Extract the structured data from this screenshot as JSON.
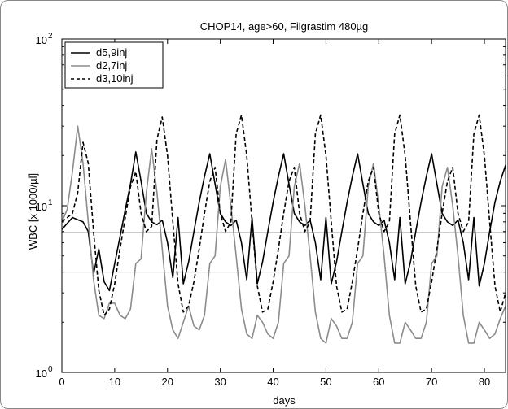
{
  "chart_data": {
    "type": "line",
    "title": "CHOP14, age>60, Filgrastim 480µg",
    "xlabel": "days",
    "ylabel": "WBC [x 1000/µl]",
    "xlim": [
      0,
      84
    ],
    "ylim": [
      1,
      100
    ],
    "y_scale": "log",
    "x_ticks": [
      0,
      10,
      20,
      30,
      40,
      50,
      60,
      70,
      80
    ],
    "x_tick_labels": [
      "0",
      "10",
      "20",
      "30",
      "40",
      "50",
      "60",
      "70",
      "80"
    ],
    "y_ticks": [
      1,
      10,
      100
    ],
    "y_tick_labels": [
      {
        "base": "10",
        "exp": "0"
      },
      {
        "base": "10",
        "exp": "1"
      },
      {
        "base": "10",
        "exp": "2"
      }
    ],
    "legend_position": "top-left",
    "reference_lines": [
      6.9,
      4.0
    ],
    "colors": {
      "black": "#000000",
      "gray": "#8c8c8c",
      "reference": "#9a9a9a"
    },
    "series": [
      {
        "name": "d5,9inj",
        "style": "solid",
        "color": "#000000",
        "x": [
          0,
          2,
          4,
          5,
          6,
          7,
          8,
          9,
          10,
          11,
          12,
          13,
          14,
          15,
          16,
          17,
          18,
          19,
          20,
          21,
          22,
          23,
          24,
          25,
          26,
          27,
          28,
          29,
          30,
          31,
          32,
          33,
          34,
          35,
          36,
          37,
          38,
          39,
          40,
          41,
          42,
          43,
          44,
          45,
          46,
          47,
          48,
          49,
          50,
          51,
          52,
          53,
          54,
          55,
          56,
          57,
          58,
          59,
          60,
          61,
          62,
          63,
          64,
          65,
          66,
          67,
          68,
          69,
          70,
          71,
          72,
          73,
          74,
          75,
          76,
          77,
          78,
          79,
          80,
          81,
          82,
          83,
          84
        ],
        "y": [
          7.2,
          8.5,
          8.0,
          7.0,
          3.9,
          5.5,
          3.5,
          3.1,
          4.5,
          6.5,
          9.5,
          13.5,
          21.0,
          14.0,
          9.0,
          8.0,
          7.7,
          8.2,
          6.0,
          3.7,
          8.5,
          3.4,
          4.6,
          7.0,
          10.5,
          15.0,
          20.5,
          13.5,
          9.0,
          8.0,
          7.6,
          8.2,
          6.0,
          3.6,
          8.5,
          3.4,
          4.6,
          7.0,
          10.5,
          15.0,
          20.5,
          13.5,
          9.0,
          8.0,
          7.6,
          8.2,
          6.0,
          3.6,
          8.5,
          3.4,
          4.6,
          7.0,
          10.5,
          15.0,
          20.5,
          13.5,
          9.0,
          8.0,
          7.6,
          8.2,
          6.0,
          3.6,
          8.5,
          3.4,
          4.6,
          7.0,
          10.5,
          15.0,
          20.5,
          13.5,
          9.0,
          8.0,
          7.6,
          8.2,
          6.0,
          3.6,
          8.5,
          3.3,
          4.5,
          7.0,
          10.5,
          14.0,
          17.5
        ]
      },
      {
        "name": "d2,7inj",
        "style": "solid",
        "color": "#8c8c8c",
        "x": [
          0,
          1,
          2,
          3,
          4,
          5,
          6,
          7,
          8,
          9,
          10,
          11,
          12,
          13,
          14,
          15,
          16,
          17,
          18,
          19,
          20,
          21,
          22,
          23,
          24,
          25,
          26,
          27,
          28,
          29,
          30,
          31,
          32,
          33,
          34,
          35,
          36,
          37,
          38,
          39,
          40,
          41,
          42,
          43,
          44,
          45,
          46,
          47,
          48,
          49,
          50,
          51,
          52,
          53,
          54,
          55,
          56,
          57,
          58,
          59,
          60,
          61,
          62,
          63,
          64,
          65,
          66,
          67,
          68,
          69,
          70,
          71,
          72,
          73,
          74,
          75,
          76,
          77,
          78,
          79,
          80,
          81,
          82,
          83,
          84
        ],
        "y": [
          8.0,
          9.5,
          16.0,
          30.0,
          18.0,
          8.0,
          3.6,
          2.2,
          2.1,
          2.6,
          2.6,
          2.2,
          2.1,
          2.4,
          4.5,
          4.8,
          12.0,
          22.0,
          12.0,
          5.5,
          2.5,
          1.8,
          1.6,
          2.0,
          2.5,
          1.9,
          1.8,
          2.2,
          4.5,
          5.0,
          13.0,
          19.0,
          10.0,
          5.0,
          2.4,
          1.7,
          1.6,
          2.2,
          2.0,
          1.7,
          1.6,
          2.0,
          4.5,
          5.0,
          13.0,
          18.0,
          10.0,
          5.0,
          2.3,
          1.6,
          1.5,
          2.1,
          1.9,
          1.6,
          1.6,
          2.0,
          4.5,
          5.0,
          13.0,
          18.0,
          10.0,
          5.0,
          2.2,
          1.5,
          1.5,
          2.0,
          1.8,
          1.6,
          1.6,
          2.0,
          4.5,
          5.0,
          13.0,
          17.0,
          10.0,
          5.0,
          2.2,
          1.5,
          1.5,
          2.0,
          1.8,
          1.6,
          1.7,
          2.1,
          2.5
        ]
      },
      {
        "name": "d3,10inj",
        "style": "dashed",
        "color": "#000000",
        "x": [
          0,
          2,
          3,
          4,
          5,
          6,
          7,
          8,
          9,
          10,
          11,
          12,
          13,
          14,
          15,
          16,
          17,
          18,
          19,
          20,
          21,
          22,
          23,
          24,
          25,
          26,
          27,
          28,
          29,
          30,
          31,
          32,
          33,
          34,
          35,
          36,
          37,
          38,
          39,
          40,
          41,
          42,
          43,
          44,
          45,
          46,
          47,
          48,
          49,
          50,
          51,
          52,
          53,
          54,
          55,
          56,
          57,
          58,
          59,
          60,
          61,
          62,
          63,
          64,
          65,
          66,
          67,
          68,
          69,
          70,
          71,
          72,
          73,
          74,
          75,
          76,
          77,
          78,
          79,
          80,
          81,
          82,
          83,
          84
        ],
        "y": [
          8.0,
          9.0,
          12.0,
          24.0,
          18.0,
          7.0,
          3.1,
          2.2,
          2.4,
          3.4,
          5.5,
          8.5,
          13.0,
          16.0,
          9.0,
          7.0,
          7.5,
          25.0,
          34.0,
          20.0,
          8.0,
          3.4,
          2.3,
          2.5,
          3.5,
          5.5,
          9.0,
          14.0,
          17.0,
          9.0,
          7.0,
          8.0,
          27.0,
          35.0,
          20.0,
          8.0,
          3.3,
          2.3,
          2.4,
          3.5,
          5.5,
          9.0,
          14.0,
          17.0,
          9.0,
          7.0,
          8.0,
          27.0,
          35.0,
          20.0,
          8.0,
          3.3,
          2.3,
          2.4,
          3.5,
          5.5,
          9.0,
          14.0,
          17.0,
          9.0,
          7.0,
          8.0,
          27.0,
          35.0,
          20.0,
          8.0,
          3.3,
          2.3,
          2.4,
          3.5,
          5.5,
          9.0,
          14.0,
          17.0,
          9.0,
          7.0,
          8.0,
          27.0,
          35.0,
          20.0,
          8.0,
          3.3,
          2.3,
          3.0
        ]
      }
    ]
  }
}
